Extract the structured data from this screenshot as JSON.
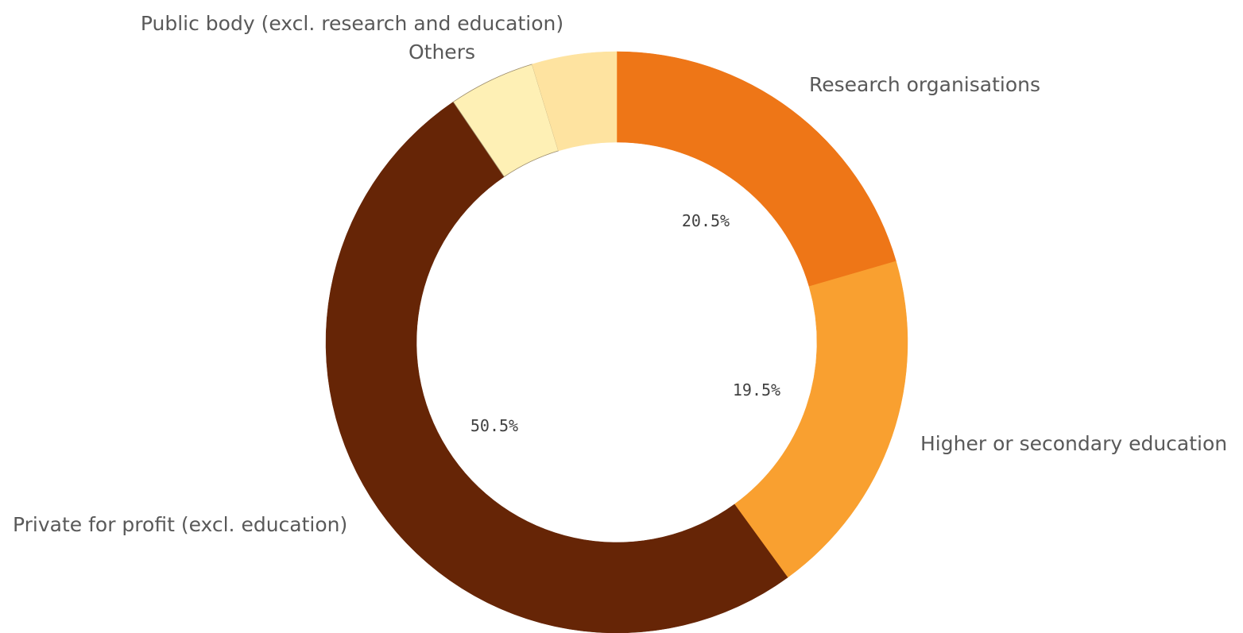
{
  "chart_data": {
    "type": "pie",
    "donut": true,
    "slices": [
      {
        "label": "Research organisations",
        "value": 20.5,
        "display": "20.5%",
        "color": "#EE7617"
      },
      {
        "label": "Higher or secondary education",
        "value": 19.5,
        "display": "19.5%",
        "color": "#F9A030"
      },
      {
        "label": "Private for profit (excl. education)",
        "value": 50.5,
        "display": "50.5%",
        "color": "#662506"
      },
      {
        "label": "Others",
        "value": 4.8,
        "display": "",
        "color": "#FEF0B5"
      },
      {
        "label": "Public body (excl. research and education)",
        "value": 4.7,
        "display": "",
        "color": "#FEE3A0"
      }
    ]
  }
}
